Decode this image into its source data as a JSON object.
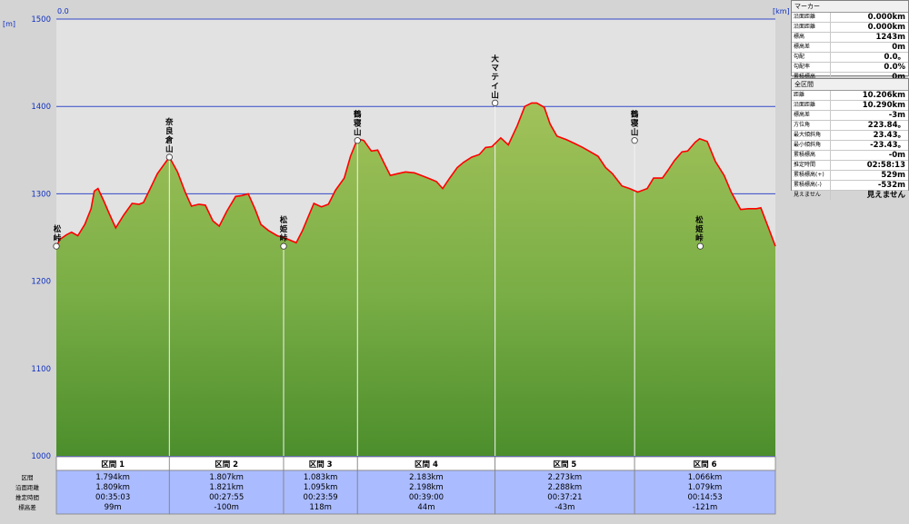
{
  "chart_data": {
    "type": "area",
    "x_axis_label": "0.0",
    "x_unit": "[km]",
    "y_unit": "[m]",
    "ylim": [
      1000,
      1500
    ],
    "y_ticks": [
      1000,
      1100,
      1200,
      1300,
      1400,
      1500
    ],
    "grid": true,
    "total_distance_km": 10.206,
    "profile": [
      [
        0.0,
        1240
      ],
      [
        0.06,
        1248
      ],
      [
        0.16,
        1253
      ],
      [
        0.24,
        1256
      ],
      [
        0.34,
        1252
      ],
      [
        0.45,
        1265
      ],
      [
        0.55,
        1283
      ],
      [
        0.6,
        1303
      ],
      [
        0.66,
        1306
      ],
      [
        0.75,
        1292
      ],
      [
        0.84,
        1277
      ],
      [
        0.94,
        1261
      ],
      [
        1.07,
        1276
      ],
      [
        1.2,
        1289
      ],
      [
        1.31,
        1288
      ],
      [
        1.38,
        1290
      ],
      [
        1.48,
        1305
      ],
      [
        1.6,
        1323
      ],
      [
        1.79,
        1342
      ],
      [
        1.92,
        1325
      ],
      [
        2.04,
        1302
      ],
      [
        2.14,
        1286
      ],
      [
        2.26,
        1288
      ],
      [
        2.36,
        1287
      ],
      [
        2.48,
        1269
      ],
      [
        2.58,
        1263
      ],
      [
        2.7,
        1280
      ],
      [
        2.84,
        1297
      ],
      [
        2.94,
        1298
      ],
      [
        3.04,
        1300
      ],
      [
        3.15,
        1282
      ],
      [
        3.24,
        1265
      ],
      [
        3.36,
        1258
      ],
      [
        3.5,
        1252
      ],
      [
        3.6,
        1250
      ],
      [
        3.7,
        1247
      ],
      [
        3.8,
        1244
      ],
      [
        3.9,
        1258
      ],
      [
        3.98,
        1272
      ],
      [
        4.08,
        1289
      ],
      [
        4.2,
        1285
      ],
      [
        4.31,
        1288
      ],
      [
        4.42,
        1304
      ],
      [
        4.56,
        1318
      ],
      [
        4.66,
        1343
      ],
      [
        4.77,
        1363
      ],
      [
        4.87,
        1361
      ],
      [
        4.99,
        1349
      ],
      [
        5.09,
        1350
      ],
      [
        5.2,
        1334
      ],
      [
        5.29,
        1321
      ],
      [
        5.4,
        1323
      ],
      [
        5.53,
        1325
      ],
      [
        5.67,
        1324
      ],
      [
        5.82,
        1320
      ],
      [
        5.92,
        1317
      ],
      [
        6.02,
        1314
      ],
      [
        6.12,
        1306
      ],
      [
        6.23,
        1318
      ],
      [
        6.35,
        1330
      ],
      [
        6.45,
        1336
      ],
      [
        6.58,
        1342
      ],
      [
        6.7,
        1345
      ],
      [
        6.8,
        1353
      ],
      [
        6.9,
        1354
      ],
      [
        7.04,
        1364
      ],
      [
        7.16,
        1356
      ],
      [
        7.3,
        1378
      ],
      [
        7.42,
        1400
      ],
      [
        7.53,
        1404
      ],
      [
        7.61,
        1404
      ],
      [
        7.73,
        1399
      ],
      [
        7.82,
        1380
      ],
      [
        7.93,
        1366
      ],
      [
        8.08,
        1362
      ],
      [
        8.23,
        1357
      ],
      [
        8.34,
        1353
      ],
      [
        8.46,
        1348
      ],
      [
        8.58,
        1343
      ],
      [
        8.7,
        1330
      ],
      [
        8.81,
        1323
      ],
      [
        8.96,
        1309
      ],
      [
        9.08,
        1306
      ],
      [
        9.21,
        1302
      ],
      [
        9.36,
        1306
      ],
      [
        9.46,
        1318
      ],
      [
        9.6,
        1318
      ],
      [
        9.69,
        1327
      ],
      [
        9.79,
        1338
      ],
      [
        9.91,
        1348
      ],
      [
        10.0,
        1349
      ],
      [
        10.12,
        1359
      ],
      [
        10.19,
        1363
      ],
      [
        10.31,
        1360
      ],
      [
        10.44,
        1337
      ],
      [
        10.58,
        1321
      ],
      [
        10.69,
        1302
      ],
      [
        10.84,
        1282
      ],
      [
        10.96,
        1283
      ],
      [
        11.09,
        1283
      ],
      [
        11.16,
        1284
      ],
      [
        11.27,
        1263
      ],
      [
        11.39,
        1240
      ]
    ],
    "summits": [
      {
        "name": "松峠",
        "x": 0.0,
        "y": 1240
      },
      {
        "name": "奈良倉山",
        "x": 1.79,
        "y": 1342
      },
      {
        "name": "松姫峠",
        "x": 3.6,
        "y": 1240
      },
      {
        "name": "鶴寝山",
        "x": 4.77,
        "y": 1361
      },
      {
        "name": "大マテイ山",
        "x": 6.95,
        "y": 1404
      },
      {
        "name": "鶴寝山",
        "x": 9.16,
        "y": 1361
      },
      {
        "name": "松姫峠",
        "x": 10.2,
        "y": 1240
      }
    ]
  },
  "sections": [
    {
      "label": "区間 1",
      "dist": "1.794km",
      "sdist": "1.809km",
      "time": "00:35:03",
      "elev": "99m"
    },
    {
      "label": "区間 2",
      "dist": "1.807km",
      "sdist": "1.821km",
      "time": "00:27:55",
      "elev": "-100m"
    },
    {
      "label": "区間 3",
      "dist": "1.083km",
      "sdist": "1.095km",
      "time": "00:23:59",
      "elev": "118m"
    },
    {
      "label": "区間 4",
      "dist": "2.183km",
      "sdist": "2.198km",
      "time": "00:39:00",
      "elev": "44m"
    },
    {
      "label": "区間 5",
      "dist": "2.273km",
      "sdist": "2.288km",
      "time": "00:37:21",
      "elev": "-43m"
    },
    {
      "label": "区間 6",
      "dist": "1.066km",
      "sdist": "1.079km",
      "time": "00:14:53",
      "elev": "-121m"
    }
  ],
  "section_row_labels": [
    "区間",
    "沿面距離",
    "推定時間",
    "標高差"
  ],
  "marker_panel": {
    "title": "マーカー",
    "rows": [
      {
        "label": "沿面距離",
        "value": "0.000km"
      },
      {
        "label": "沿面距離",
        "value": "0.000km"
      },
      {
        "label": "標高",
        "value": "1243m"
      },
      {
        "label": "標高差",
        "value": "0m"
      },
      {
        "label": "勾配",
        "value": "0.0。"
      },
      {
        "label": "勾配率",
        "value": "0.0%"
      },
      {
        "label": "累積標高",
        "value": "0m"
      }
    ]
  },
  "total_panel": {
    "title": "全区間",
    "rows": [
      {
        "label": "距離",
        "value": "10.206km"
      },
      {
        "label": "沿面距離",
        "value": "10.290km"
      },
      {
        "label": "標高差",
        "value": "-3m"
      },
      {
        "label": "方位角",
        "value": "223.84。"
      },
      {
        "label": "最大傾斜角",
        "value": "23.43。"
      },
      {
        "label": "最小傾斜角",
        "value": "-23.43。"
      },
      {
        "label": "累積標高",
        "value": "-0m"
      },
      {
        "label": "推定時間",
        "value": "02:58:13"
      },
      {
        "label": "累積標高(+)",
        "value": "529m"
      },
      {
        "label": "累積標高(-)",
        "value": "-532m"
      },
      {
        "label": "見えません",
        "value": "見えません"
      }
    ]
  }
}
